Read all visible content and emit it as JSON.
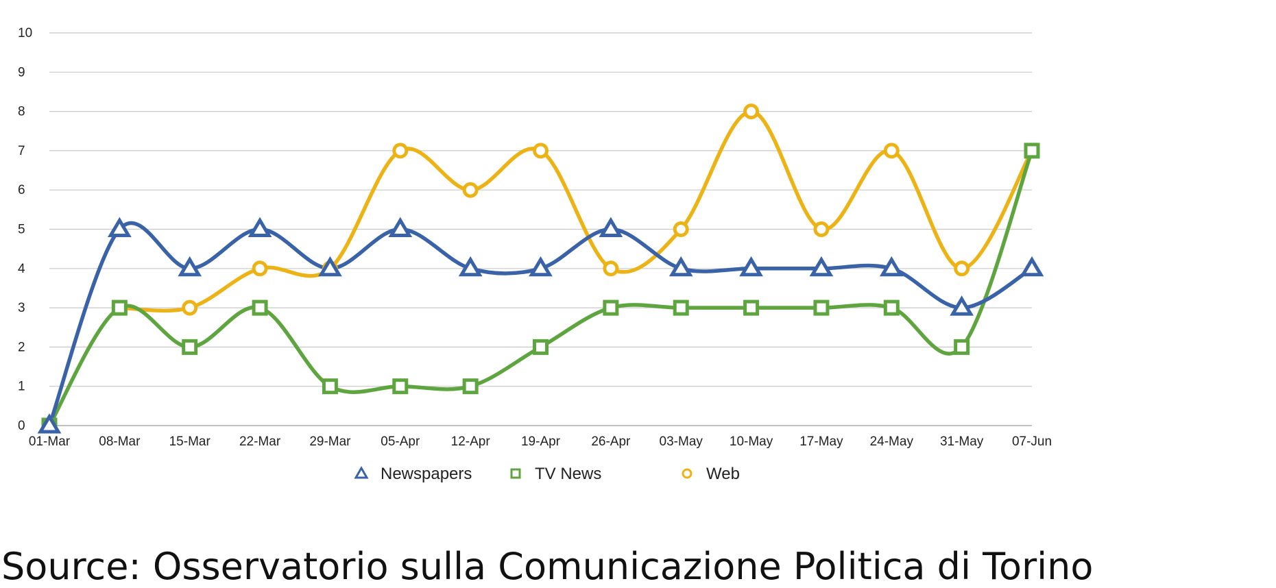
{
  "chart_data": {
    "type": "line",
    "title": "",
    "xlabel": "",
    "ylabel": "",
    "ylim": [
      0,
      10
    ],
    "yticks": [
      0,
      1,
      2,
      3,
      4,
      5,
      6,
      7,
      8,
      9,
      10
    ],
    "grid": true,
    "legend_position": "bottom-center",
    "categories": [
      "01-Mar",
      "08-Mar",
      "15-Mar",
      "22-Mar",
      "29-Mar",
      "05-Apr",
      "12-Apr",
      "19-Apr",
      "26-Apr",
      "03-May",
      "10-May",
      "17-May",
      "24-May",
      "31-May",
      "07-Jun"
    ],
    "series": [
      {
        "name": "Newspapers",
        "marker": "triangle",
        "color": "#3a62a7",
        "values": [
          0,
          5,
          4,
          5,
          4,
          5,
          4,
          4,
          5,
          4,
          4,
          4,
          4,
          3,
          4
        ]
      },
      {
        "name": "TV News",
        "marker": "square",
        "color": "#5ea53f",
        "values": [
          0,
          3,
          2,
          3,
          1,
          1,
          1,
          2,
          3,
          3,
          3,
          3,
          3,
          2,
          7
        ]
      },
      {
        "name": "Web",
        "marker": "circle",
        "color": "#ebb316",
        "values": [
          null,
          3,
          3,
          4,
          4,
          7,
          6,
          7,
          4,
          5,
          8,
          5,
          7,
          4,
          7
        ]
      }
    ]
  },
  "source_text": "Source: Osservatorio sulla Comunicazione Politica di Torino"
}
